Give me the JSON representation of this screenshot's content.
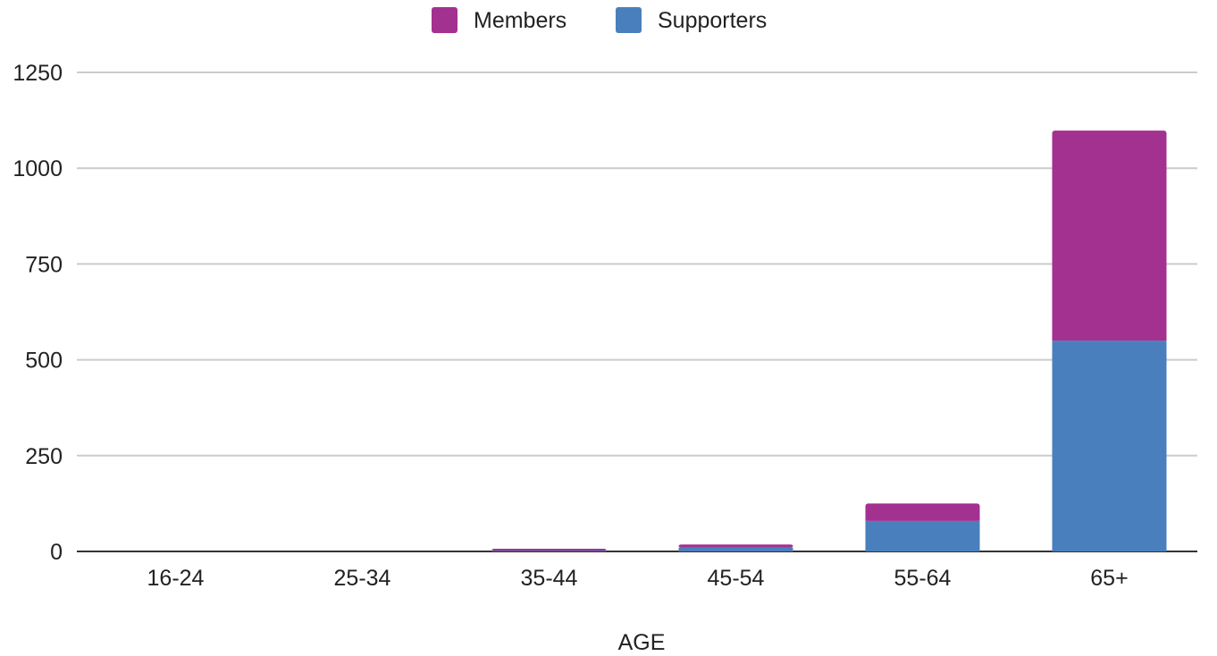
{
  "chart_data": {
    "type": "bar",
    "stacked": true,
    "title": "",
    "xlabel": "AGE",
    "ylabel": "",
    "categories": [
      "16-24",
      "25-34",
      "35-44",
      "45-54",
      "55-64",
      "65+"
    ],
    "series": [
      {
        "name": "Supporters",
        "color": "#4a7fbd",
        "values": [
          0,
          0,
          2,
          10,
          80,
          550
        ]
      },
      {
        "name": "Members",
        "color": "#a3318f",
        "values": [
          0,
          0,
          5,
          8,
          45,
          548
        ]
      }
    ],
    "ylim": [
      0,
      1250
    ],
    "yticks": [
      0,
      250,
      500,
      750,
      1000,
      1250
    ],
    "grid": true,
    "legend": {
      "placement": "top-center",
      "items": [
        {
          "label": "Members",
          "color": "#a3318f"
        },
        {
          "label": "Supporters",
          "color": "#4a7fbd"
        }
      ]
    }
  }
}
